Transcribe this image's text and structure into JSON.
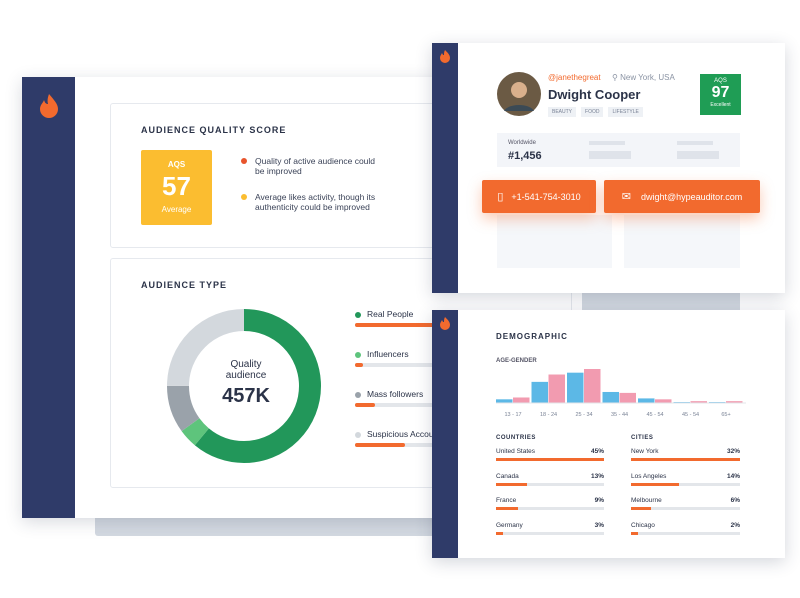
{
  "audience_quality": {
    "title": "AUDIENCE QUALITY SCORE",
    "aqs_label": "AQS",
    "aqs": 57,
    "aqs_grade": "Average",
    "notes": [
      {
        "text": "Quality of active audience could be improved",
        "color": "#e8542c"
      },
      {
        "text": "Average likes activity, though its authenticity could be improved",
        "color": "#fbbd30"
      }
    ]
  },
  "audience_type": {
    "title": "AUDIENCE TYPE",
    "center_label": "Quality audience",
    "center_value": "457K",
    "segments": [
      {
        "name": "Real People",
        "value": 61,
        "color": "#22975a"
      },
      {
        "name": "Influencers",
        "value": 4,
        "color": "#5ec47c"
      },
      {
        "name": "Mass followers",
        "value": 10,
        "color": "#9aa2aa"
      },
      {
        "name": "Suspicious Accounts",
        "value": 25,
        "color": "#d3d8dd"
      }
    ]
  },
  "profile": {
    "handle": "@janethegreat",
    "location": "New York, USA",
    "name": "Dwight Cooper",
    "tags": [
      "BEAUTY",
      "FOOD",
      "LIFESTYLE"
    ],
    "aqs_label": "AQS",
    "aqs": 97,
    "aqs_grade": "Excellent",
    "rank_label": "Worldwide",
    "rank": "#1,456",
    "phone": "+1-541-754-3010",
    "email": "dwight@hypeauditor.com"
  },
  "demographic": {
    "title": "DEMOGRAPHIC",
    "age_gender": {
      "type": "bar",
      "title": "AGE-GENDER",
      "categories": [
        "13 - 17",
        "18 - 24",
        "25 - 34",
        "35 - 44",
        "45 - 54",
        "45 - 54",
        "65+"
      ],
      "series": [
        {
          "color": "#5cb8e6",
          "values": [
            4,
            23,
            33,
            12,
            5,
            1,
            1
          ]
        },
        {
          "color": "#f29bb0",
          "values": [
            6,
            31,
            37,
            11,
            4,
            2,
            2
          ]
        }
      ]
    },
    "countries": {
      "title": "COUNTRIES",
      "names": [
        "United States",
        "Canada",
        "France",
        "Germany"
      ],
      "values": [
        45,
        13,
        9,
        3
      ],
      "value_labels": [
        "45%",
        "13%",
        "9%",
        "3%"
      ]
    },
    "cities": {
      "title": "CITIES",
      "names": [
        "New York",
        "Los Angeles",
        "Melbourne",
        "Chicago"
      ],
      "values": [
        32,
        14,
        6,
        2
      ],
      "value_labels": [
        "32%",
        "14%",
        "6%",
        "2%"
      ]
    }
  }
}
